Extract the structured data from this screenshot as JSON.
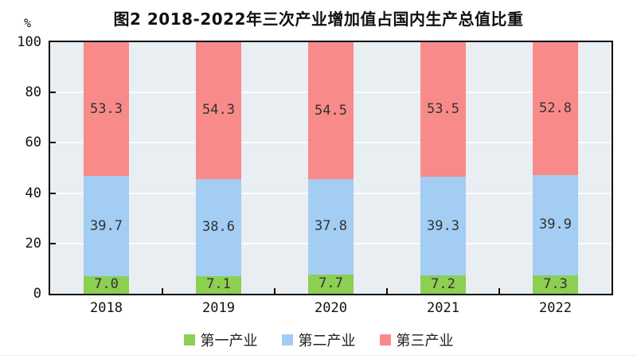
{
  "title": "图2 2018-2022年三次产业增加值占国内生产总值比重",
  "y_axis": {
    "unit": "%",
    "ticks": [
      0,
      20,
      40,
      60,
      80,
      100
    ]
  },
  "chart_data": {
    "type": "bar",
    "stacked": true,
    "title": "图2 2018-2022年三次产业增加值占国内生产总值比重",
    "categories": [
      "2018",
      "2019",
      "2020",
      "2021",
      "2022"
    ],
    "series": [
      {
        "name": "第一产业",
        "color": "#8ccf52",
        "values": [
          7.0,
          7.1,
          7.7,
          7.2,
          7.3
        ],
        "labels": [
          "7.0",
          "7.1",
          "7.7",
          "7.2",
          "7.3"
        ]
      },
      {
        "name": "第二产业",
        "color": "#a3cdf2",
        "values": [
          39.7,
          38.6,
          37.8,
          39.3,
          39.9
        ],
        "labels": [
          "39.7",
          "38.6",
          "37.8",
          "39.3",
          "39.9"
        ]
      },
      {
        "name": "第三产业",
        "color": "#f98a8a",
        "values": [
          53.3,
          54.3,
          54.5,
          53.5,
          52.8
        ],
        "labels": [
          "53.3",
          "54.3",
          "54.5",
          "53.5",
          "52.8"
        ]
      }
    ],
    "ylabel": "%",
    "ylim": [
      0,
      100
    ],
    "grid": true,
    "plot_background": "#e9eef2",
    "gridline_color": "#fbfdfe",
    "legend_position": "bottom"
  }
}
